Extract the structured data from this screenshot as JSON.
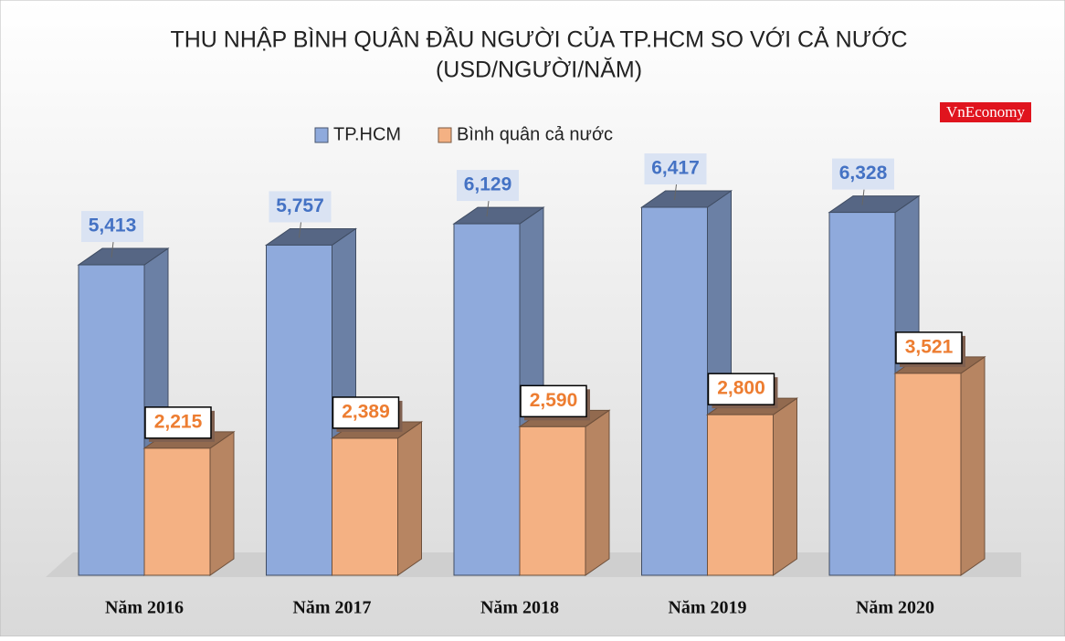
{
  "chart_data": {
    "type": "bar3d",
    "title": "THU NHẬP BÌNH QUÂN ĐẦU NGƯỜI CỦA TP.HCM SO VỚI CẢ NƯỚC",
    "subtitle": "(USD/NGƯỜI/NĂM)",
    "logo": "VnEconomy",
    "legend": "top",
    "categories": [
      "Năm 2016",
      "Năm 2017",
      "Năm 2018",
      "Năm 2019",
      "Năm 2020"
    ],
    "series": [
      {
        "name": "TP.HCM",
        "color": "#8faadc",
        "values": [
          5413,
          5757,
          6129,
          6417,
          6328
        ],
        "value_labels": [
          "5,413",
          "5,757",
          "6,129",
          "6,417",
          "6,328"
        ]
      },
      {
        "name": "Bình quân cả nước",
        "color": "#f4b183",
        "values": [
          2215,
          2389,
          2590,
          2800,
          3521
        ],
        "value_labels": [
          "2,215",
          "2,389",
          "2,590",
          "2,800",
          "3,521"
        ]
      }
    ]
  }
}
